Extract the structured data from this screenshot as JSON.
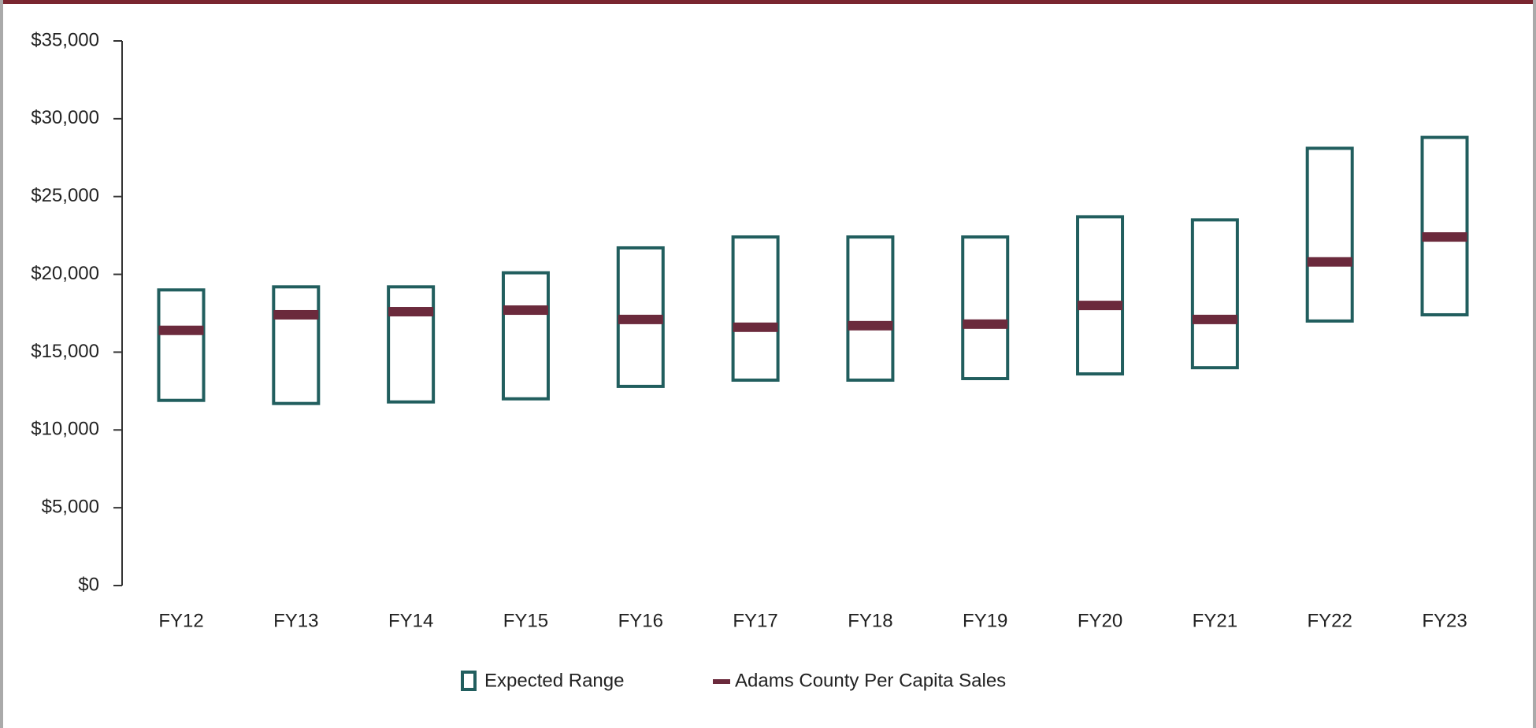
{
  "chart_data": {
    "type": "floating",
    "categories": [
      "FY12",
      "FY13",
      "FY14",
      "FY15",
      "FY16",
      "FY17",
      "FY18",
      "FY19",
      "FY20",
      "FY21",
      "FY22",
      "FY23"
    ],
    "series": [
      {
        "name": "Expected Range",
        "color": "#215e5e",
        "low": [
          11900,
          11700,
          11800,
          12000,
          12800,
          13200,
          13200,
          13300,
          13600,
          14000,
          17000,
          17400
        ],
        "high": [
          19000,
          19200,
          19200,
          20100,
          21700,
          22400,
          22400,
          22400,
          23700,
          23500,
          28100,
          28800
        ]
      },
      {
        "name": "Adams County Per Capita Sales",
        "color": "#6b2a3c",
        "values": [
          16400,
          17400,
          17600,
          17700,
          17100,
          16600,
          16700,
          16800,
          18000,
          17100,
          20800,
          22400
        ]
      }
    ],
    "ylim": [
      0,
      35000
    ],
    "yticks": [
      {
        "value": 0,
        "label": "$0"
      },
      {
        "value": 5000,
        "label": "$5,000"
      },
      {
        "value": 10000,
        "label": "$10,000"
      },
      {
        "value": 15000,
        "label": "$15,000"
      },
      {
        "value": 20000,
        "label": "$20,000"
      },
      {
        "value": 25000,
        "label": "$25,000"
      },
      {
        "value": 30000,
        "label": "$30,000"
      },
      {
        "value": 35000,
        "label": "$35,000"
      }
    ],
    "grid": false
  }
}
